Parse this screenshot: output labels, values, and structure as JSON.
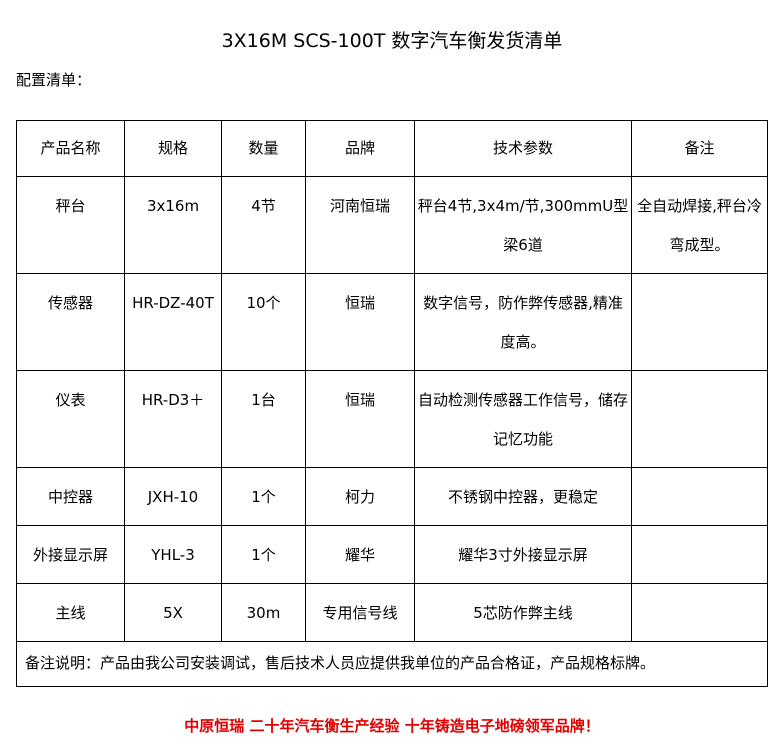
{
  "title": "3X16M SCS-100T 数字汽车衡发货清单",
  "subtitle": "配置清单：",
  "headers": [
    "产品名称",
    "规格",
    "数量",
    "品牌",
    "技术参数",
    "备注"
  ],
  "rows": [
    [
      "秤台",
      "3x16m",
      "4节",
      "河南恒瑞",
      "秤台4节,3x4m/节,300mmU型梁6道",
      "全自动焊接,秤台冷弯成型。"
    ],
    [
      "传感器",
      "HR-DZ-40T",
      "10个",
      "恒瑞",
      "数字信号，防作弊传感器,精准度高。",
      ""
    ],
    [
      "仪表",
      "HR-D3＋",
      "1台",
      "恒瑞",
      "自动检测传感器工作信号，储存记忆功能",
      ""
    ],
    [
      "中控器",
      "JXH-10",
      "1个",
      "柯力",
      "不锈钢中控器，更稳定",
      ""
    ],
    [
      "外接显示屏",
      "YHL-3",
      "1个",
      "耀华",
      "耀华3寸外接显示屏",
      ""
    ],
    [
      "主线",
      "5X",
      "30m",
      "专用信号线",
      "5芯防作弊主线",
      ""
    ]
  ],
  "note": "备注说明：产品由我公司安装调试，售后技术人员应提供我单位的产品合格证，产品规格标牌。",
  "slogan": "中原恒瑞 二十年汽车衡生产经验 十年铸造电子地磅领军品牌！",
  "colors": {
    "slogan": "#e00000"
  }
}
